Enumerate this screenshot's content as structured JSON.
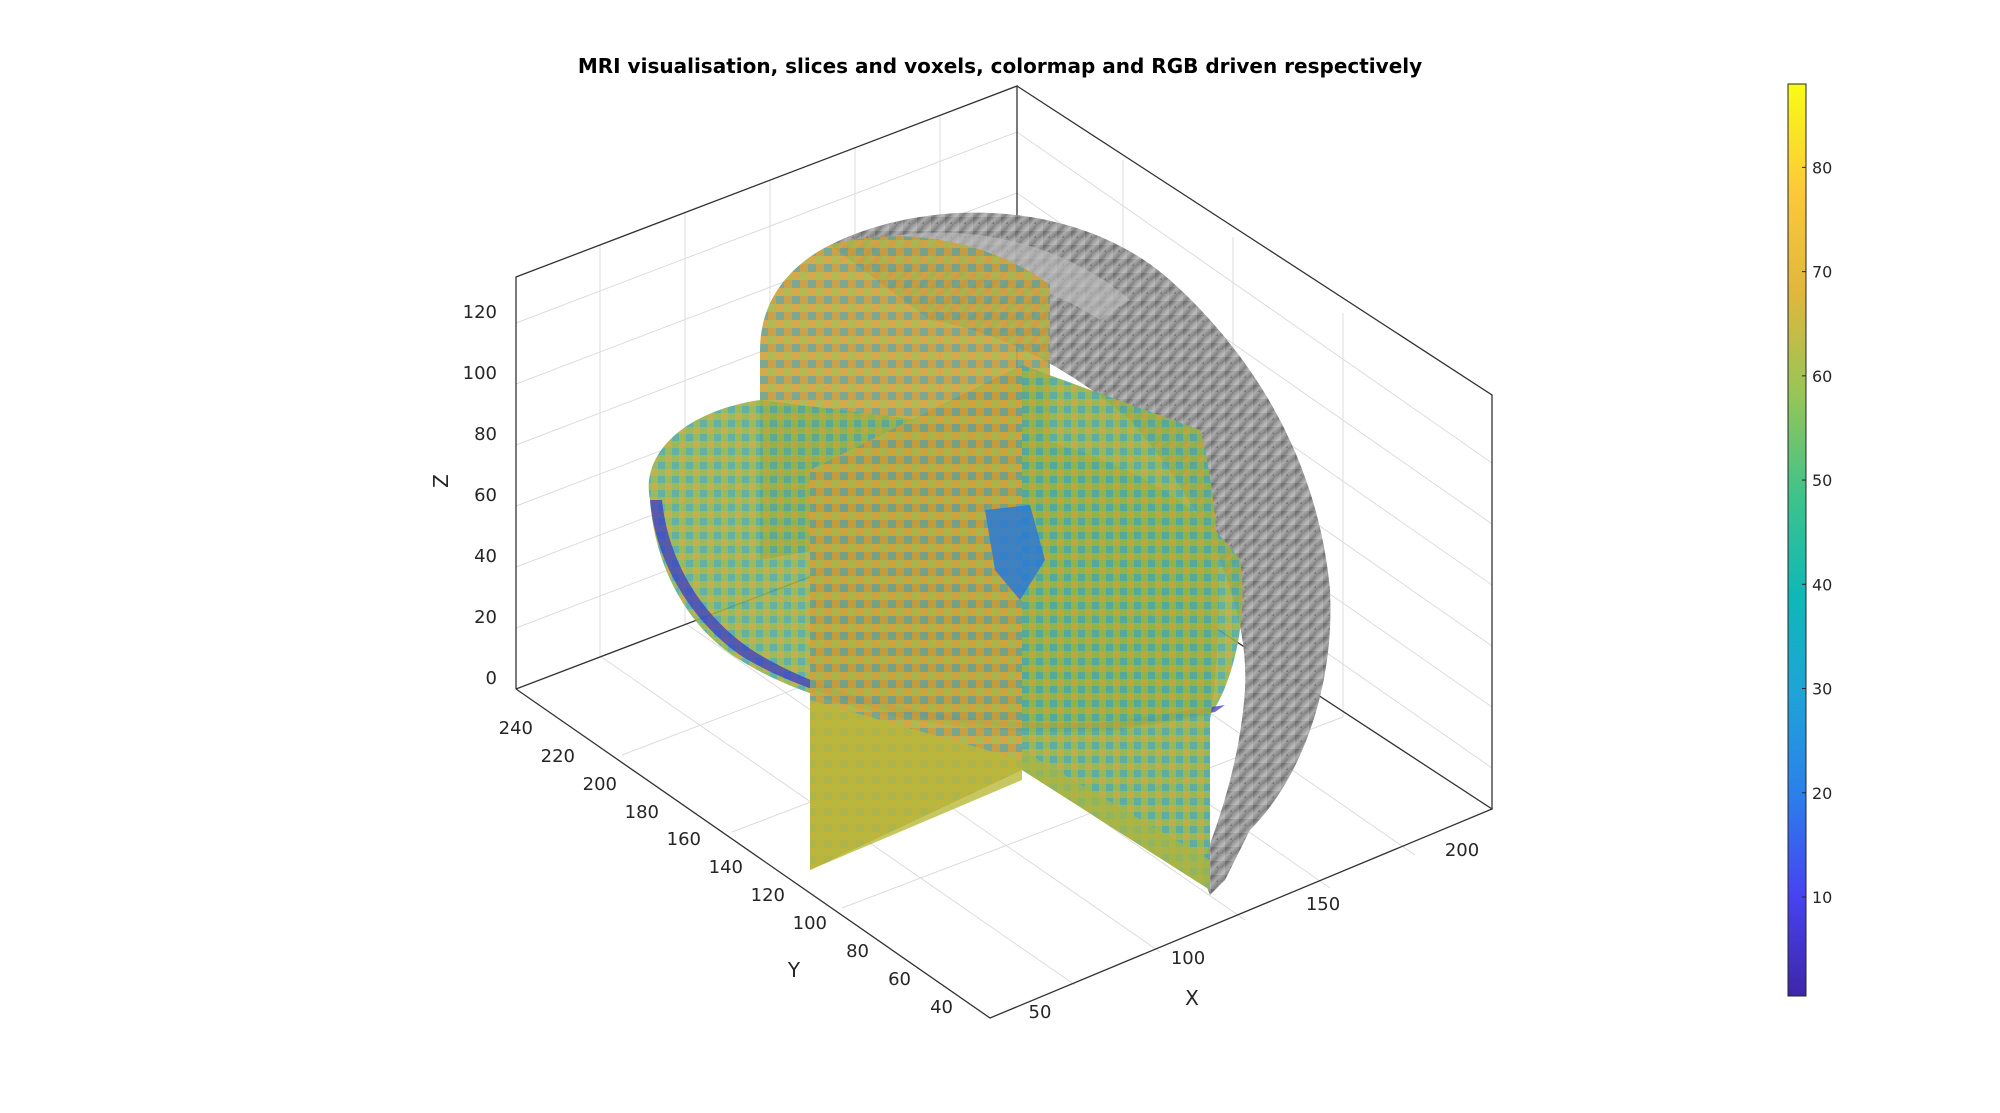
{
  "title": "MRI visualisation, slices and voxels, colormap and RGB driven respectively",
  "axes": {
    "x": {
      "label": "X",
      "ticks": [
        "50",
        "100",
        "150",
        "200"
      ]
    },
    "y": {
      "label": "Y",
      "ticks": [
        "40",
        "60",
        "80",
        "100",
        "120",
        "140",
        "160",
        "180",
        "200",
        "220",
        "240"
      ]
    },
    "z": {
      "label": "Z",
      "ticks": [
        "0",
        "20",
        "40",
        "60",
        "80",
        "100",
        "120"
      ]
    }
  },
  "colorbar": {
    "ticks": [
      "10",
      "20",
      "30",
      "40",
      "50",
      "60",
      "70",
      "80"
    ],
    "range": [
      0.5,
      88
    ],
    "colormap": "parula",
    "colors": [
      "#3e26a8",
      "#4743f2",
      "#2c7fea",
      "#1fa3d8",
      "#0fb8b6",
      "#3fc38a",
      "#97c557",
      "#e0b73c",
      "#fcc83a",
      "#f9fb15"
    ]
  },
  "view": {
    "items": [
      "colormap-driven orthogonal slices",
      "RGB (grayscale) driven voxel head surface"
    ]
  }
}
